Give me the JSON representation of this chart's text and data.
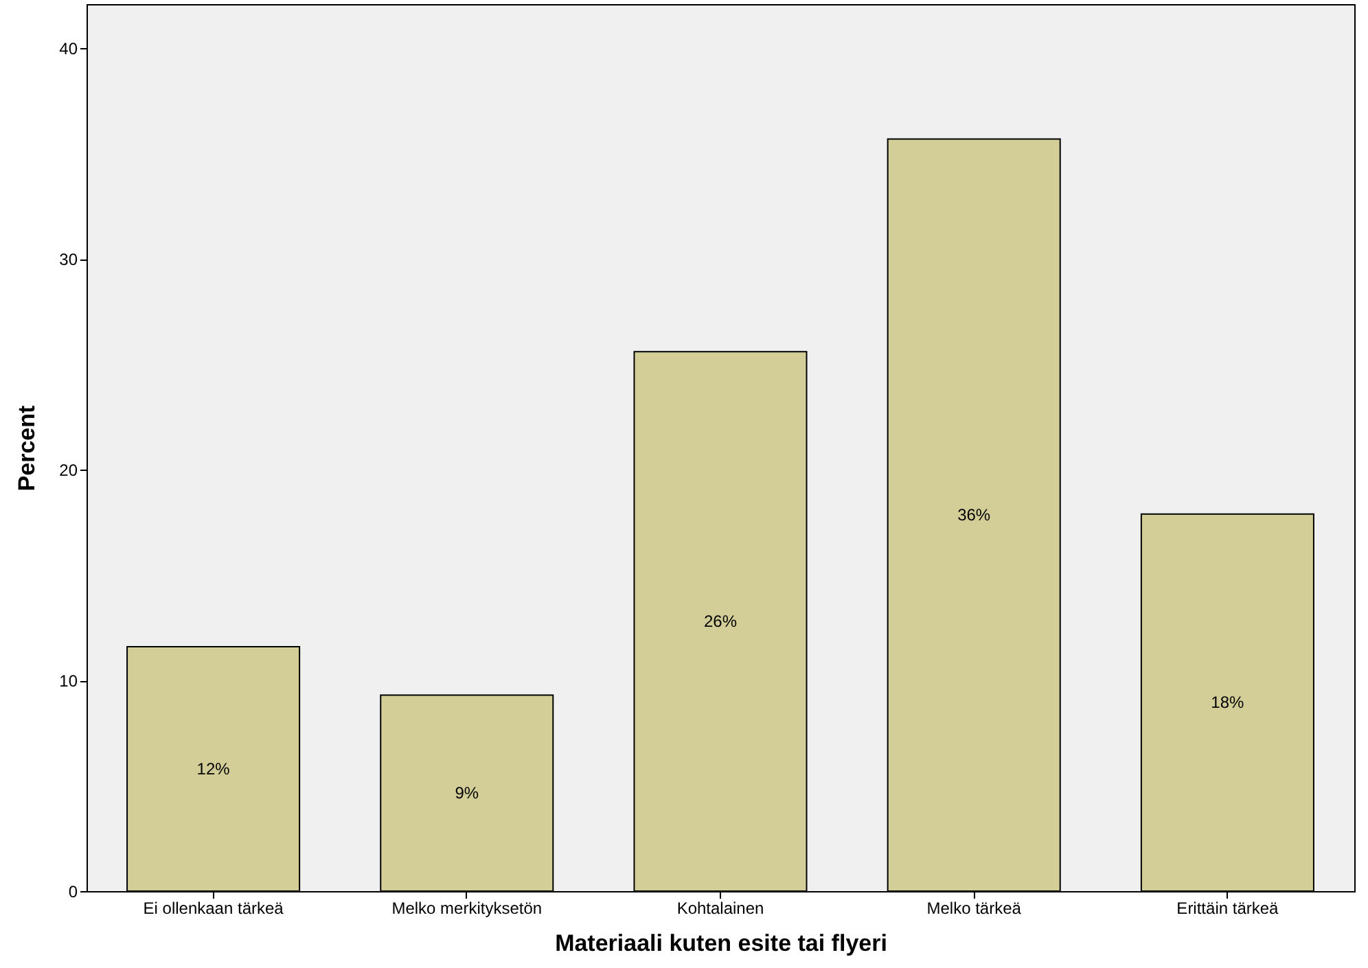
{
  "chart_data": {
    "type": "bar",
    "xlabel": "Materiaali kuten esite tai flyeri",
    "ylabel": "Percent",
    "categories": [
      "Ei ollenkaan tärkeä",
      "Melko merkityksetön",
      "Kohtalainen",
      "Melko tärkeä",
      "Erittäin tärkeä"
    ],
    "values": [
      11.6,
      9.3,
      25.6,
      35.7,
      17.9
    ],
    "value_labels": [
      "12%",
      "9%",
      "26%",
      "36%",
      "18%"
    ],
    "color": "#d3ce97",
    "ylim": [
      0,
      42.1
    ],
    "yticks": [
      0,
      10,
      20,
      30,
      40
    ],
    "grid": false
  }
}
